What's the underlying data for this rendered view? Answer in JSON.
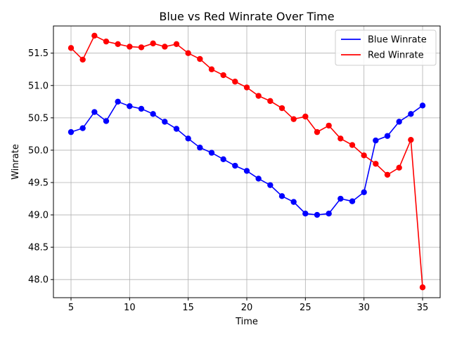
{
  "chart_data": {
    "type": "line",
    "title": "Blue vs Red Winrate Over Time",
    "xlabel": "Time",
    "ylabel": "Winrate",
    "xlim": [
      3.5,
      36.5
    ],
    "ylim": [
      47.72,
      51.92
    ],
    "xticks": [
      5,
      10,
      15,
      20,
      25,
      30,
      35
    ],
    "yticks": [
      48.0,
      48.5,
      49.0,
      49.5,
      50.0,
      50.5,
      51.0,
      51.5
    ],
    "xtick_labels": [
      "5",
      "10",
      "15",
      "20",
      "25",
      "30",
      "35"
    ],
    "ytick_labels": [
      "48.0",
      "48.5",
      "49.0",
      "49.5",
      "50.0",
      "50.5",
      "51.0",
      "51.5"
    ],
    "grid": true,
    "legend_position": "top-right",
    "x": [
      5,
      6,
      7,
      8,
      9,
      10,
      11,
      12,
      13,
      14,
      15,
      16,
      17,
      18,
      19,
      20,
      21,
      22,
      23,
      24,
      25,
      26,
      27,
      28,
      29,
      30,
      31,
      32,
      33,
      34,
      35
    ],
    "series": [
      {
        "name": "Blue Winrate",
        "color": "#0000ff",
        "values": [
          50.28,
          50.34,
          50.59,
          50.45,
          50.75,
          50.68,
          50.64,
          50.56,
          50.44,
          50.33,
          50.18,
          50.04,
          49.96,
          49.86,
          49.76,
          49.68,
          49.56,
          49.46,
          49.29,
          49.2,
          49.02,
          49.0,
          49.02,
          49.25,
          49.21,
          49.35,
          50.15,
          50.22,
          50.44,
          50.56,
          50.69
        ]
      },
      {
        "name": "Red Winrate",
        "color": "#ff0000",
        "values": [
          51.58,
          51.4,
          51.77,
          51.68,
          51.64,
          51.6,
          51.59,
          51.65,
          51.6,
          51.64,
          51.5,
          51.41,
          51.25,
          51.16,
          51.06,
          50.97,
          50.84,
          50.76,
          50.65,
          50.48,
          50.52,
          50.28,
          50.38,
          50.18,
          50.08,
          49.92,
          49.79,
          49.62,
          49.73,
          50.16,
          47.88
        ]
      }
    ]
  }
}
